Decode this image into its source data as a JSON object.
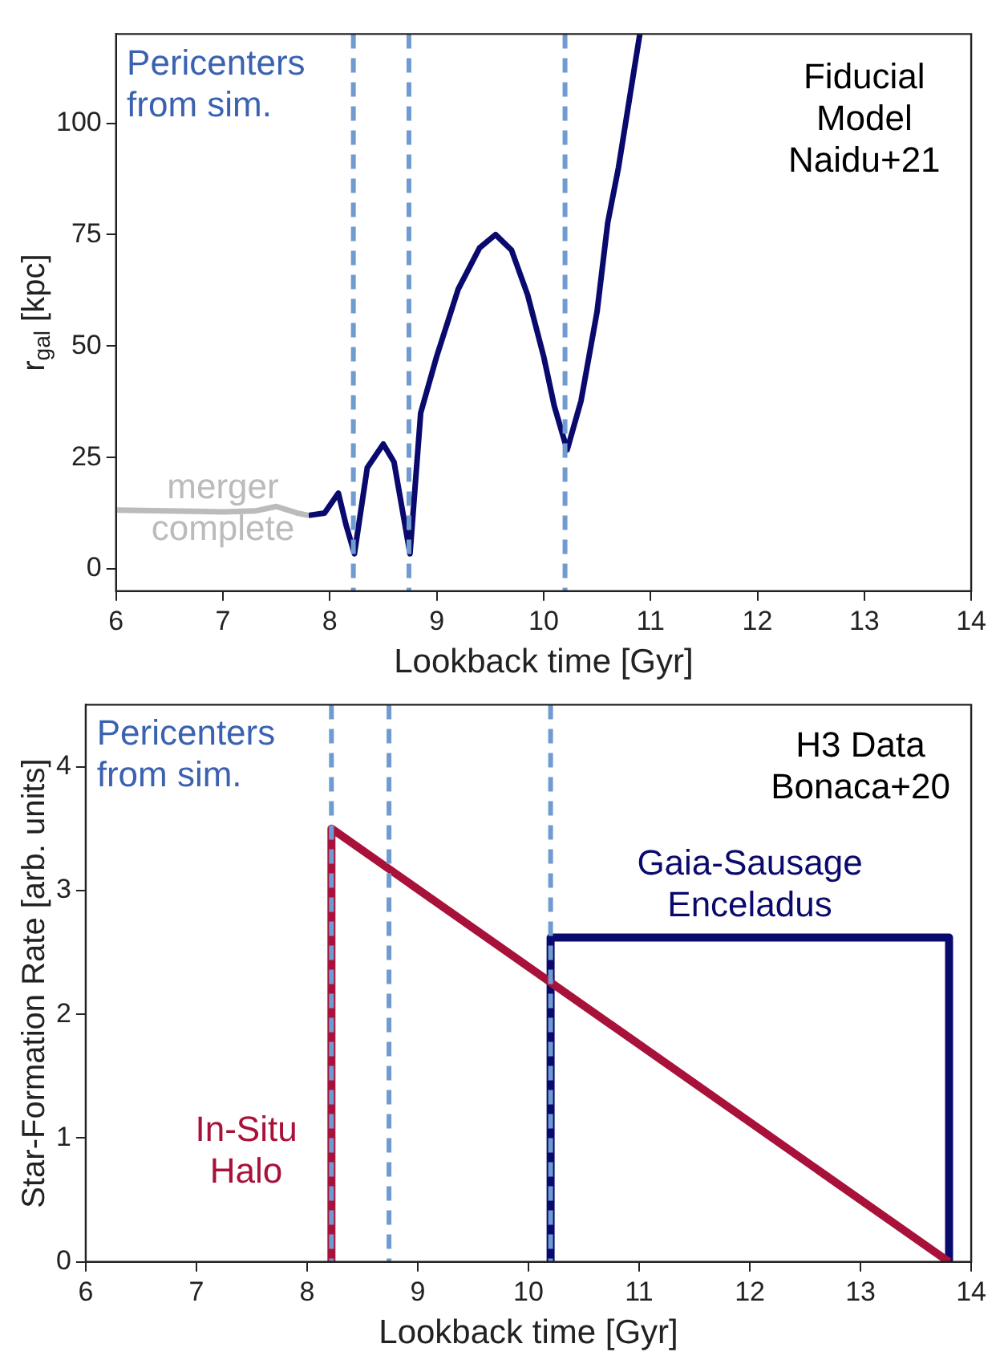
{
  "chart_data": [
    {
      "type": "line",
      "xlabel": "Lookback time [Gyr]",
      "ylabel": "r$_{gal}$ [kpc]",
      "xlim": [
        6,
        14
      ],
      "ylim": [
        -5,
        120
      ],
      "xticks": [
        6,
        7,
        8,
        9,
        10,
        11,
        12,
        13,
        14
      ],
      "yticks": [
        0,
        25,
        50,
        75,
        100
      ],
      "marker": "none",
      "annotations": [
        "Pericenters from sim.",
        "Fiducial Model Naidu+21"
      ],
      "ref_lines": [
        {
          "axis": "x",
          "value": 8.22,
          "color": "#6f9bd1",
          "line_style": "dashed"
        },
        {
          "axis": "x",
          "value": 8.74,
          "color": "#6f9bd1",
          "line_style": "dashed"
        },
        {
          "axis": "x",
          "value": 10.2,
          "color": "#6f9bd1",
          "line_style": "dashed"
        }
      ],
      "series": [
        {
          "name": "merger complete",
          "color": "#bbbbbb",
          "x": [
            6,
            6.5,
            7,
            7.3,
            7.5,
            7.7,
            7.8
          ],
          "values": [
            13.2,
            13,
            12.8,
            13,
            14,
            12.5,
            12
          ]
        },
        {
          "color": "#0a0a6e",
          "x": [
            7.8,
            7.95,
            8.08,
            8.15,
            8.23,
            8.35,
            8.5,
            8.6,
            8.75,
            8.85,
            9,
            9.2,
            9.4,
            9.55,
            9.7,
            9.85,
            10,
            10.1,
            10.22,
            10.35,
            10.5,
            10.6,
            10.7,
            10.9
          ],
          "values": [
            12,
            12.5,
            17,
            10,
            3.4,
            22.7,
            28,
            24,
            3.4,
            35,
            47.7,
            62.7,
            72,
            75,
            71.5,
            61.5,
            47.7,
            36.5,
            26.7,
            37.7,
            57.7,
            77.7,
            90,
            120
          ]
        }
      ]
    },
    {
      "type": "line",
      "xlabel": "Lookback time [Gyr]",
      "ylabel": "Star-Formation Rate [arb. units]",
      "xlim": [
        6,
        14
      ],
      "ylim": [
        0,
        4.5
      ],
      "xticks": [
        6,
        7,
        8,
        9,
        10,
        11,
        12,
        13,
        14
      ],
      "yticks": [
        0,
        1,
        2,
        3,
        4
      ],
      "marker": "none",
      "annotations": [
        "Pericenters from sim.",
        "H3 Data Bonaca+20"
      ],
      "ref_lines": [
        {
          "axis": "x",
          "value": 8.22,
          "color": "#6f9bd1",
          "line_style": "dashed"
        },
        {
          "axis": "x",
          "value": 8.74,
          "color": "#6f9bd1",
          "line_style": "dashed"
        },
        {
          "axis": "x",
          "value": 10.2,
          "color": "#6f9bd1",
          "line_style": "dashed"
        }
      ],
      "series": [
        {
          "name": "In-Situ Halo",
          "color": "#a8123a",
          "x": [
            8.22,
            8.22,
            13.8
          ],
          "values": [
            0,
            3.5,
            0
          ]
        },
        {
          "name": "Gaia-Sausage Enceladus",
          "color": "#0a0a6e",
          "x": [
            10.2,
            10.2,
            13.8,
            13.8
          ],
          "values": [
            0,
            2.62,
            2.62,
            0
          ]
        }
      ]
    }
  ]
}
